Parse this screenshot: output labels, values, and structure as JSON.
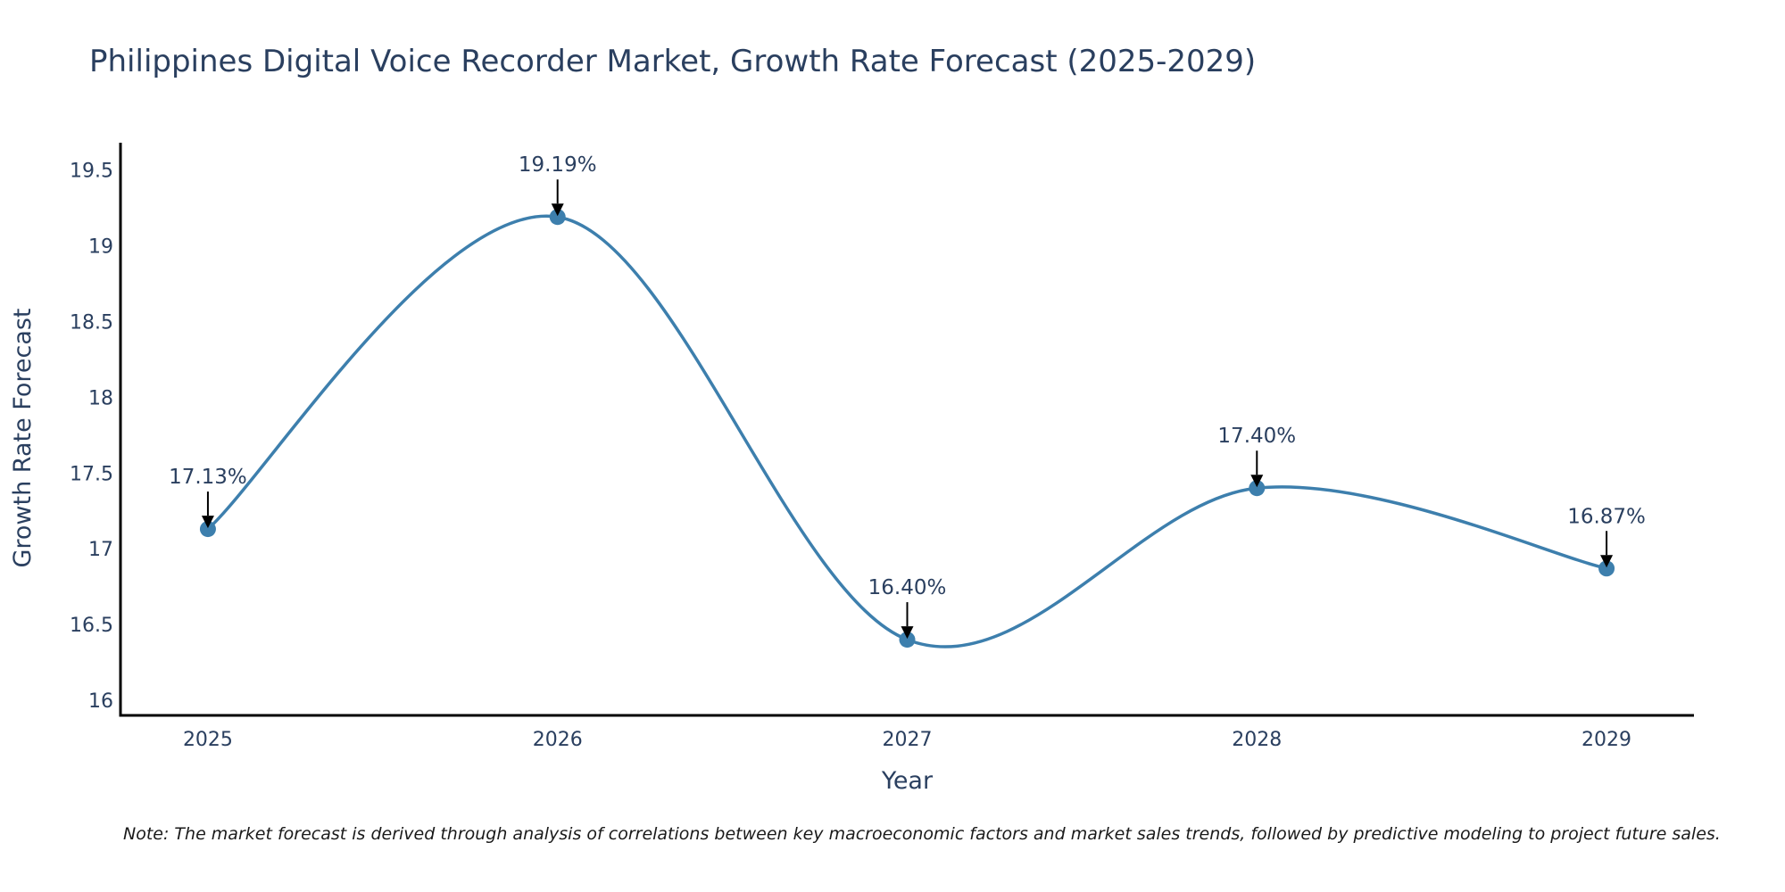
{
  "chart_data": {
    "type": "line",
    "title": "Philippines Digital Voice Recorder Market, Growth Rate Forecast (2025-2029)",
    "xlabel": "Year",
    "ylabel": "Growth Rate Forecast",
    "x": [
      2025,
      2026,
      2027,
      2028,
      2029
    ],
    "x_tick_labels": [
      "2025",
      "2026",
      "2027",
      "2028",
      "2029"
    ],
    "values": [
      17.13,
      19.19,
      16.4,
      17.4,
      16.87
    ],
    "data_labels": [
      "17.13%",
      "19.19%",
      "16.40%",
      "17.40%",
      "16.87%"
    ],
    "y_ticks": [
      16,
      16.5,
      17,
      17.5,
      18,
      18.5,
      19,
      19.5
    ],
    "y_tick_labels": [
      "16",
      "16.5",
      "17",
      "17.5",
      "18",
      "18.5",
      "19",
      "19.5"
    ],
    "ylim": [
      15.9,
      19.68
    ],
    "xlim": [
      2024.75,
      2029.25
    ],
    "grid": false,
    "line_shape": "spline",
    "series_color": "#3d7fad",
    "note": "Note: The market forecast is derived through analysis of correlations between key macroeconomic factors and market sales trends, followed by predictive modeling to project future sales."
  }
}
